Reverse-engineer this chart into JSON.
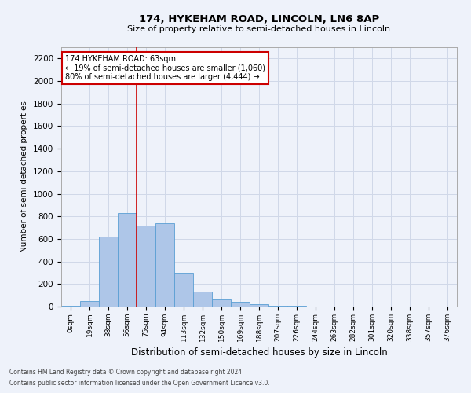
{
  "title1": "174, HYKEHAM ROAD, LINCOLN, LN6 8AP",
  "title2": "Size of property relative to semi-detached houses in Lincoln",
  "xlabel": "Distribution of semi-detached houses by size in Lincoln",
  "ylabel": "Number of semi-detached properties",
  "footnote1": "Contains HM Land Registry data © Crown copyright and database right 2024.",
  "footnote2": "Contains public sector information licensed under the Open Government Licence v3.0.",
  "annotation_line1": "174 HYKEHAM ROAD: 63sqm",
  "annotation_line2": "← 19% of semi-detached houses are smaller (1,060)",
  "annotation_line3": "80% of semi-detached houses are larger (4,444) →",
  "bar_color": "#aec6e8",
  "bar_edge_color": "#5a9fd4",
  "red_line_color": "#cc0000",
  "annotation_box_facecolor": "#ffffff",
  "annotation_box_edgecolor": "#cc0000",
  "grid_color": "#d0d8e8",
  "background_color": "#eef2fa",
  "fig_background": "#eef2fa",
  "categories": [
    "0sqm",
    "19sqm",
    "38sqm",
    "56sqm",
    "75sqm",
    "94sqm",
    "113sqm",
    "132sqm",
    "150sqm",
    "169sqm",
    "188sqm",
    "207sqm",
    "226sqm",
    "244sqm",
    "263sqm",
    "282sqm",
    "301sqm",
    "320sqm",
    "338sqm",
    "357sqm",
    "376sqm"
  ],
  "values": [
    10,
    50,
    620,
    830,
    720,
    740,
    300,
    135,
    60,
    40,
    20,
    10,
    5,
    0,
    0,
    0,
    0,
    0,
    0,
    0,
    0
  ],
  "ylim": [
    0,
    2300
  ],
  "yticks": [
    0,
    200,
    400,
    600,
    800,
    1000,
    1200,
    1400,
    1600,
    1800,
    2000,
    2200
  ],
  "red_line_x": 3.5,
  "fig_width": 6.0,
  "fig_height": 5.0,
  "dpi": 100
}
